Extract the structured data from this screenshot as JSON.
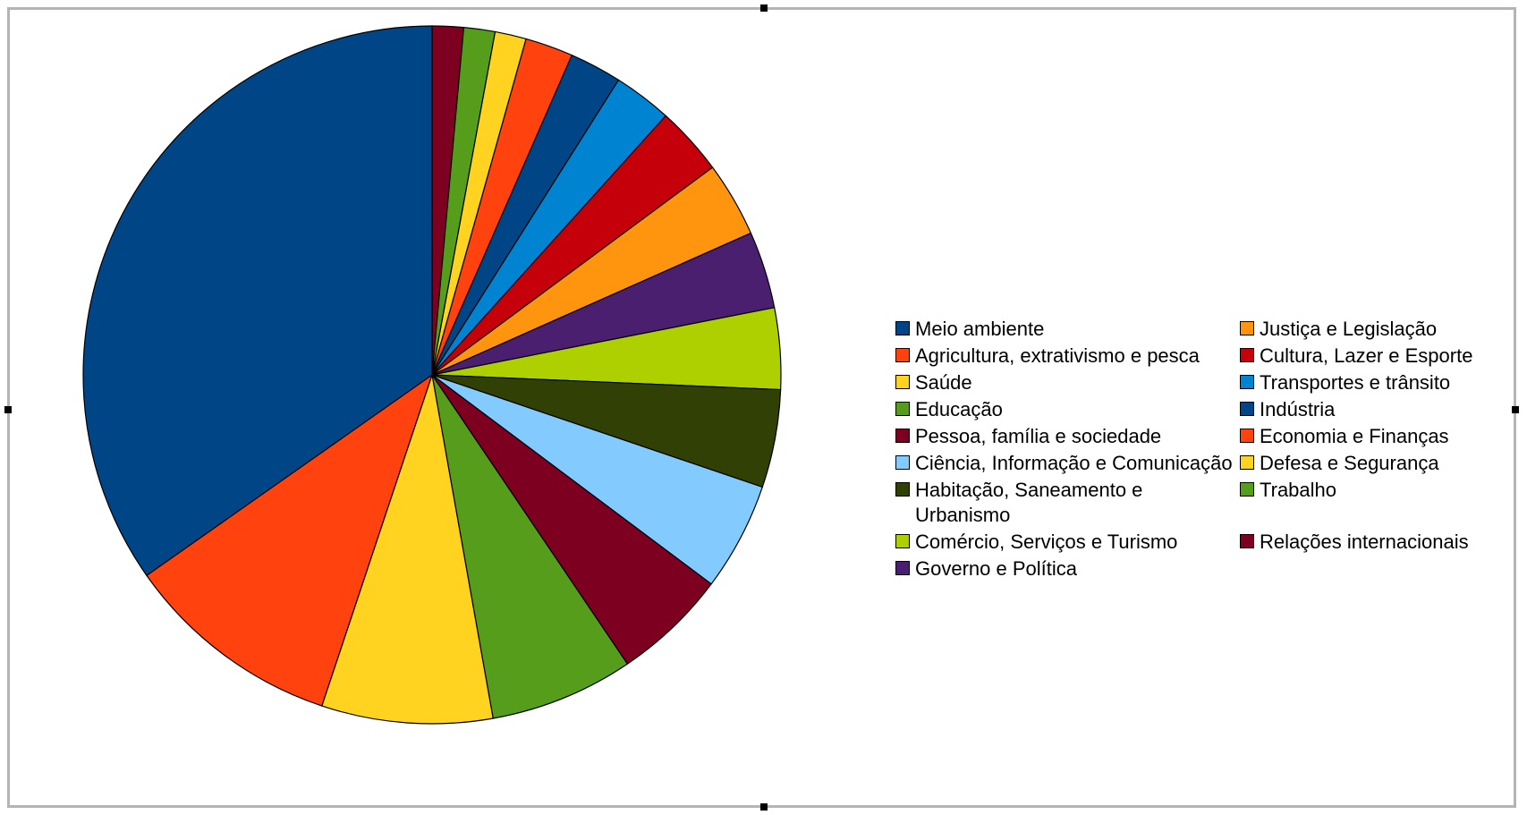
{
  "chart_data": {
    "type": "pie",
    "title": "",
    "legend_position": "right",
    "start_angle_deg": 0,
    "direction": "clockwise",
    "slice_order": [
      "Relações internacionais",
      "Trabalho",
      "Defesa e Segurança",
      "Economia e Finanças",
      "Indústria",
      "Transportes e trânsito",
      "Cultura, Lazer e Esporte",
      "Justiça e Legislação",
      "Governo e Política",
      "Comércio, Serviços e Turismo",
      "Habitação, Saneamento e Urbanismo",
      "Ciência, Informação e Comunicação",
      "Pessoa, família e sociedade",
      "Educação",
      "Saúde",
      "Agricultura, extrativismo e pesca",
      "Meio ambiente"
    ],
    "slices": [
      {
        "label": "Meio ambiente",
        "value": 36.0,
        "color": "#004586"
      },
      {
        "label": "Agricultura, extrativismo e pesca",
        "value": 10.5,
        "color": "#ff420e"
      },
      {
        "label": "Saúde",
        "value": 8.2,
        "color": "#ffd320"
      },
      {
        "label": "Educação",
        "value": 6.9,
        "color": "#579d1c"
      },
      {
        "label": "Pessoa, família e sociedade",
        "value": 5.5,
        "color": "#7e0021"
      },
      {
        "label": "Ciência, Informação e Comunicação",
        "value": 5.2,
        "color": "#83caff"
      },
      {
        "label": "Habitação, Saneamento e Urbanismo",
        "value": 4.7,
        "color": "#314004"
      },
      {
        "label": "Comércio, Serviços e Turismo",
        "value": 3.9,
        "color": "#aecf00"
      },
      {
        "label": "Governo e Política",
        "value": 3.7,
        "color": "#4b1f6f"
      },
      {
        "label": "Justiça e Legislação",
        "value": 3.6,
        "color": "#ff950e"
      },
      {
        "label": "Cultura, Lazer e Esporte",
        "value": 3.3,
        "color": "#c5000b"
      },
      {
        "label": "Transportes e trânsito",
        "value": 2.8,
        "color": "#0084d1"
      },
      {
        "label": "Indústria",
        "value": 2.5,
        "color": "#004586"
      },
      {
        "label": "Economia e Finanças",
        "value": 2.3,
        "color": "#ff420e"
      },
      {
        "label": "Defesa e Segurança",
        "value": 1.5,
        "color": "#ffd320"
      },
      {
        "label": "Trabalho",
        "value": 1.5,
        "color": "#579d1c"
      },
      {
        "label": "Relações internacionais",
        "value": 1.5,
        "color": "#7e0021"
      }
    ]
  },
  "legend": {
    "items": [
      {
        "label": "Meio ambiente",
        "color": "#004586"
      },
      {
        "label": "Justiça e Legislação",
        "color": "#ff950e"
      },
      {
        "label": "Agricultura, extrativismo e pesca",
        "color": "#ff420e"
      },
      {
        "label": "Cultura, Lazer e Esporte",
        "color": "#c5000b"
      },
      {
        "label": "Saúde",
        "color": "#ffd320"
      },
      {
        "label": "Transportes e trânsito",
        "color": "#0084d1"
      },
      {
        "label": "Educação",
        "color": "#579d1c"
      },
      {
        "label": "Indústria",
        "color": "#004586"
      },
      {
        "label": "Pessoa, família e sociedade",
        "color": "#7e0021"
      },
      {
        "label": "Economia e Finanças",
        "color": "#ff420e"
      },
      {
        "label": "Ciência, Informação e Comunicação",
        "color": "#83caff"
      },
      {
        "label": "Defesa e Segurança",
        "color": "#ffd320"
      },
      {
        "label": "Habitação, Saneamento e Urbanismo",
        "color": "#314004"
      },
      {
        "label": "Trabalho",
        "color": "#579d1c"
      },
      {
        "label": "Comércio, Serviços e Turismo",
        "color": "#aecf00"
      },
      {
        "label": "Relações internacionais",
        "color": "#7e0021"
      },
      {
        "label": "Governo e Política",
        "color": "#4b1f6f"
      }
    ]
  }
}
